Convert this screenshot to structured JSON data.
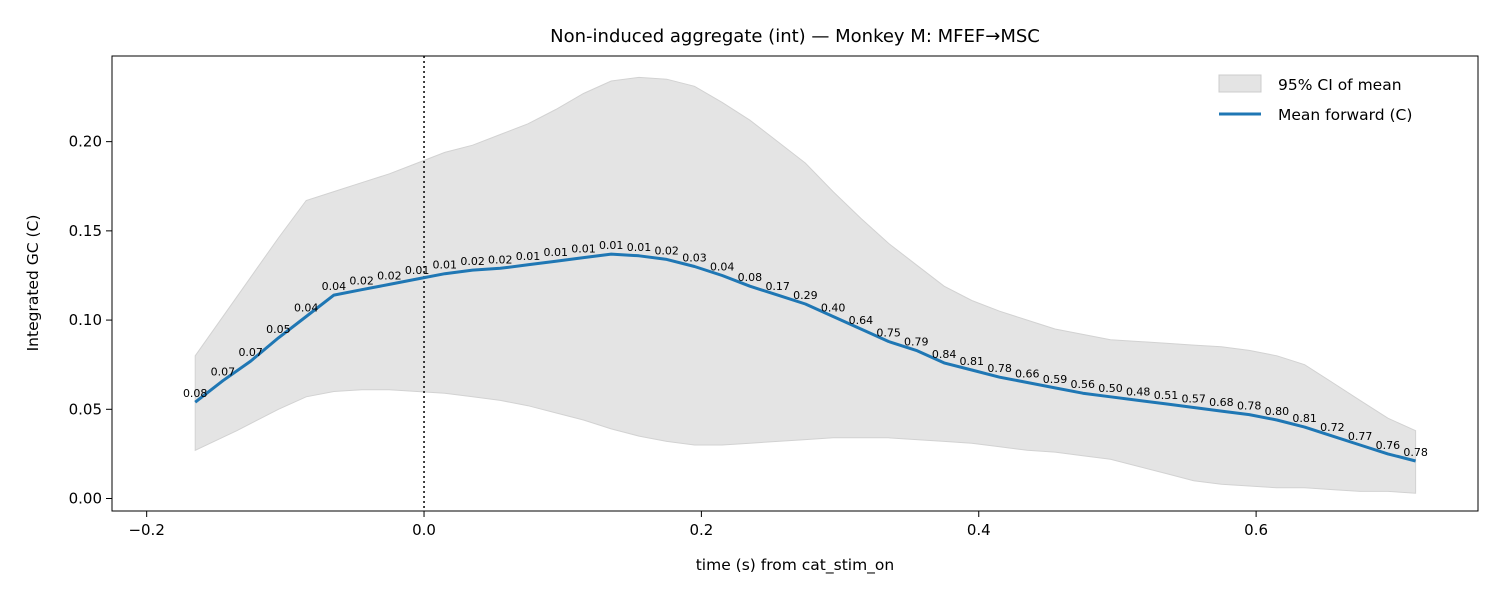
{
  "chart_data": {
    "type": "line",
    "title": "Non-induced aggregate (int) — Monkey M: MFEF→MSC",
    "xlabel": "time (s) from cat_stim_on",
    "ylabel": "Integrated GC (C)",
    "xlim": [
      -0.225,
      0.76
    ],
    "ylim": [
      -0.007,
      0.248
    ],
    "xticks": [
      -0.2,
      0.0,
      0.2,
      0.4,
      0.6
    ],
    "xtick_labels": [
      "−0.2",
      "0.0",
      "0.2",
      "0.4",
      "0.6"
    ],
    "yticks": [
      0.0,
      0.05,
      0.1,
      0.15,
      0.2
    ],
    "ytick_labels": [
      "0.00",
      "0.05",
      "0.10",
      "0.15",
      "0.20"
    ],
    "grid": false,
    "legend": {
      "position": "top-right",
      "entries": [
        {
          "label": "95% CI of mean",
          "kind": "band",
          "color": "#e4e4e4"
        },
        {
          "label": "Mean forward (C)",
          "kind": "line",
          "color": "#1f77b4"
        }
      ]
    },
    "vline": {
      "x": 0.0,
      "style": "dotted",
      "color": "#000000"
    },
    "series": [
      {
        "name": "Mean forward (C)",
        "color": "#1f77b4",
        "x": [
          -0.165,
          -0.145,
          -0.125,
          -0.105,
          -0.085,
          -0.065,
          -0.045,
          -0.025,
          -0.005,
          0.015,
          0.035,
          0.055,
          0.075,
          0.095,
          0.115,
          0.135,
          0.155,
          0.175,
          0.195,
          0.215,
          0.235,
          0.255,
          0.275,
          0.295,
          0.315,
          0.335,
          0.355,
          0.375,
          0.395,
          0.415,
          0.435,
          0.455,
          0.475,
          0.495,
          0.515,
          0.535,
          0.555,
          0.575,
          0.595,
          0.615,
          0.635,
          0.655,
          0.675,
          0.695,
          0.715
        ],
        "y": [
          0.054,
          0.066,
          0.077,
          0.09,
          0.102,
          0.114,
          0.117,
          0.12,
          0.123,
          0.126,
          0.128,
          0.129,
          0.131,
          0.133,
          0.135,
          0.137,
          0.136,
          0.134,
          0.13,
          0.125,
          0.119,
          0.114,
          0.109,
          0.102,
          0.095,
          0.088,
          0.083,
          0.076,
          0.072,
          0.068,
          0.065,
          0.062,
          0.059,
          0.057,
          0.055,
          0.053,
          0.051,
          0.049,
          0.047,
          0.044,
          0.04,
          0.035,
          0.03,
          0.025,
          0.021
        ],
        "point_labels": [
          "0.08",
          "0.07",
          "0.07",
          "0.05",
          "0.04",
          "0.04",
          "0.02",
          "0.02",
          "0.01",
          "0.01",
          "0.02",
          "0.02",
          "0.01",
          "0.01",
          "0.01",
          "0.01",
          "0.01",
          "0.02",
          "0.03",
          "0.04",
          "0.08",
          "0.17",
          "0.29",
          "0.40",
          "0.64",
          "0.75",
          "0.79",
          "0.84",
          "0.81",
          "0.78",
          "0.66",
          "0.59",
          "0.56",
          "0.50",
          "0.48",
          "0.51",
          "0.57",
          "0.68",
          "0.78",
          "0.80",
          "0.81",
          "0.72",
          "0.77",
          "0.76",
          "0.78"
        ]
      }
    ],
    "ci_band": {
      "name": "95% CI of mean",
      "color": "#e4e4e4",
      "x": [
        -0.165,
        -0.135,
        -0.105,
        -0.085,
        -0.065,
        -0.045,
        -0.025,
        -0.005,
        0.015,
        0.035,
        0.055,
        0.075,
        0.095,
        0.115,
        0.135,
        0.155,
        0.175,
        0.195,
        0.215,
        0.235,
        0.255,
        0.275,
        0.295,
        0.315,
        0.335,
        0.355,
        0.375,
        0.395,
        0.415,
        0.435,
        0.455,
        0.475,
        0.495,
        0.515,
        0.535,
        0.555,
        0.575,
        0.595,
        0.615,
        0.635,
        0.655,
        0.675,
        0.695,
        0.715
      ],
      "upper": [
        0.08,
        0.113,
        0.146,
        0.167,
        0.172,
        0.177,
        0.182,
        0.188,
        0.194,
        0.198,
        0.204,
        0.21,
        0.218,
        0.227,
        0.234,
        0.236,
        0.235,
        0.231,
        0.222,
        0.212,
        0.2,
        0.188,
        0.172,
        0.157,
        0.143,
        0.131,
        0.119,
        0.111,
        0.105,
        0.1,
        0.095,
        0.092,
        0.089,
        0.088,
        0.087,
        0.086,
        0.085,
        0.083,
        0.08,
        0.075,
        0.065,
        0.055,
        0.045,
        0.038
      ],
      "lower": [
        0.027,
        0.038,
        0.05,
        0.057,
        0.06,
        0.061,
        0.061,
        0.06,
        0.059,
        0.057,
        0.055,
        0.052,
        0.048,
        0.044,
        0.039,
        0.035,
        0.032,
        0.03,
        0.03,
        0.031,
        0.032,
        0.033,
        0.034,
        0.034,
        0.034,
        0.033,
        0.032,
        0.031,
        0.029,
        0.027,
        0.026,
        0.024,
        0.022,
        0.018,
        0.014,
        0.01,
        0.008,
        0.007,
        0.006,
        0.006,
        0.005,
        0.004,
        0.004,
        0.003
      ]
    }
  }
}
